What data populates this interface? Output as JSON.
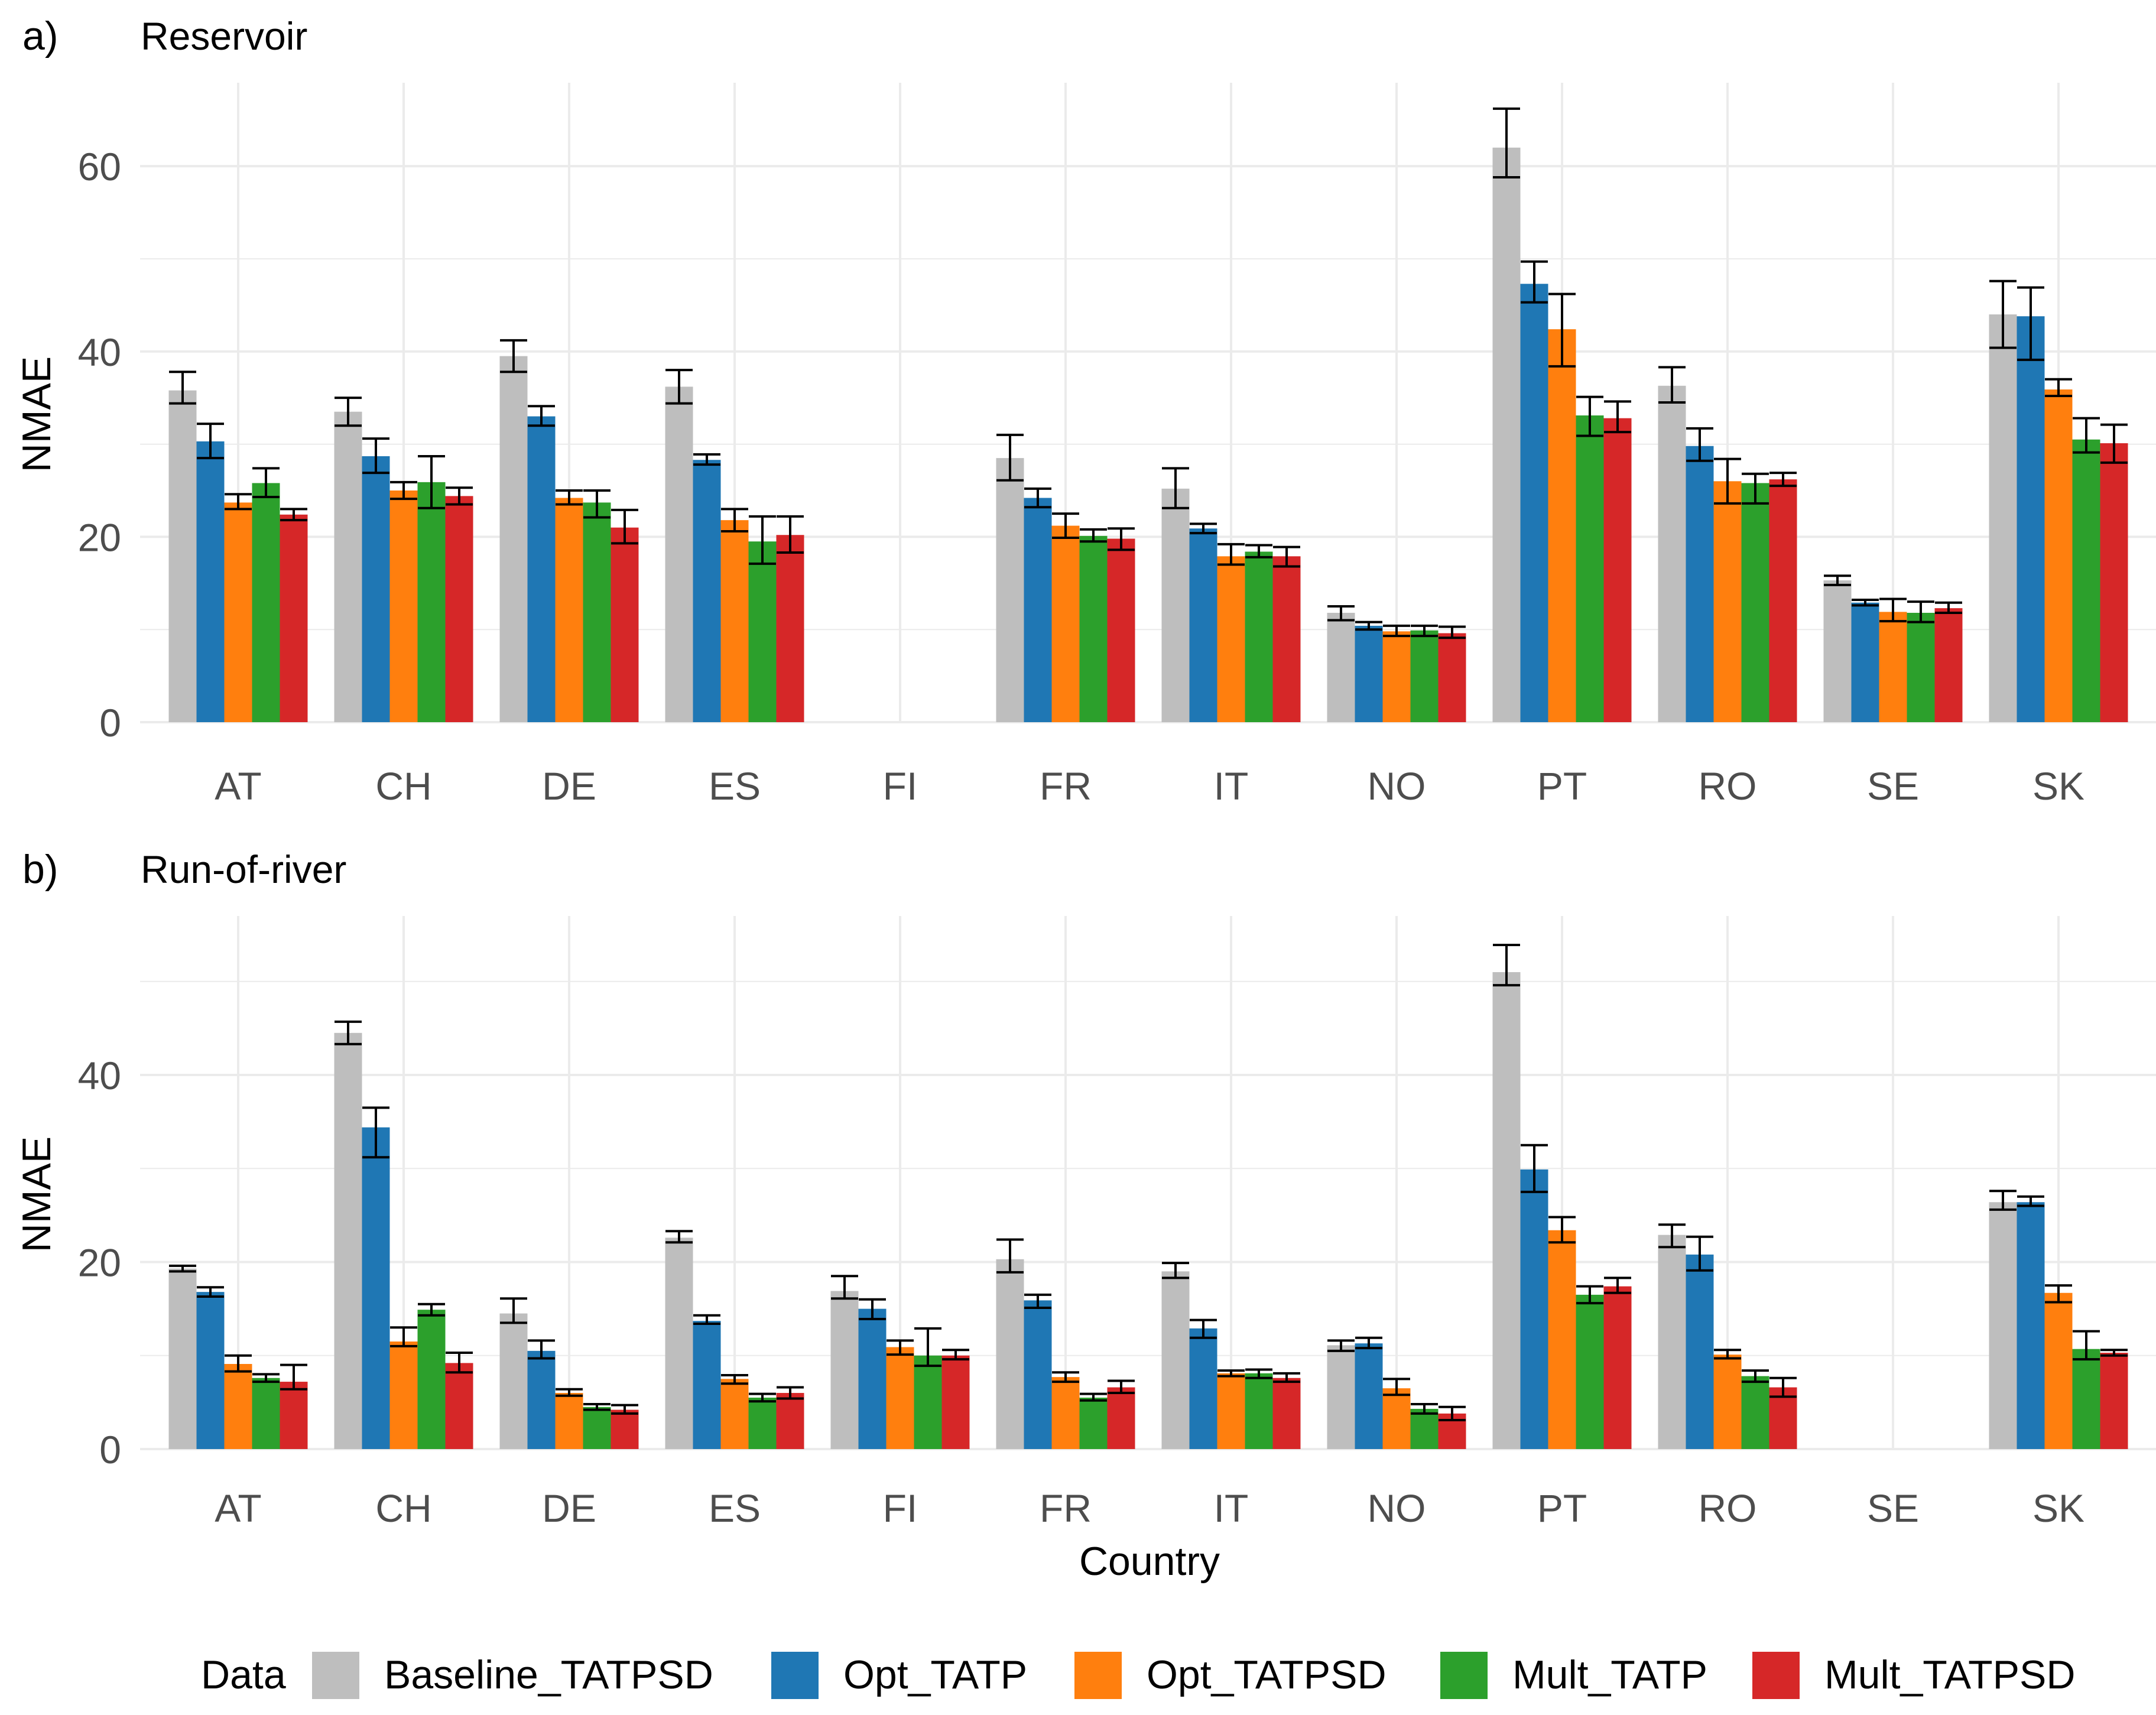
{
  "legend": {
    "title": "Data",
    "entries": [
      {
        "name": "Baseline_TATPSD",
        "color": "#bebebe"
      },
      {
        "name": "Opt_TATP",
        "color": "#1f77b4"
      },
      {
        "name": "Opt_TATPSD",
        "color": "#ff7f0e"
      },
      {
        "name": "Mult_TATP",
        "color": "#2ca02c"
      },
      {
        "name": "Mult_TATPSD",
        "color": "#d62728"
      }
    ]
  },
  "colors": {
    "grid": "#ebebeb",
    "axis_text": "#4d4d4d",
    "title_text": "#000000",
    "error_bar": "#000000"
  },
  "chart_data": [
    {
      "type": "bar",
      "panel_label": "a)",
      "title": "Reservoir",
      "xlabel": "",
      "ylabel": "NMAE",
      "ylim": [
        0,
        69
      ],
      "yticks": [
        0,
        20,
        40,
        60
      ],
      "grid": true,
      "categories": [
        "AT",
        "CH",
        "DE",
        "ES",
        "FI",
        "FR",
        "IT",
        "NO",
        "PT",
        "RO",
        "SE",
        "SK"
      ],
      "series": [
        {
          "name": "Baseline_TATPSD",
          "values": [
            35.8,
            33.5,
            39.5,
            36.2,
            null,
            28.5,
            25.2,
            11.8,
            62.0,
            36.3,
            15.3,
            44.0
          ],
          "err_low": [
            34.4,
            32.0,
            37.8,
            34.4,
            null,
            26.1,
            23.1,
            11.0,
            58.8,
            34.5,
            14.8,
            40.4
          ],
          "err_high": [
            37.8,
            35.0,
            41.2,
            38.0,
            null,
            31.0,
            27.4,
            12.5,
            66.2,
            38.3,
            15.8,
            47.6
          ]
        },
        {
          "name": "Opt_TATP",
          "values": [
            30.3,
            28.7,
            33.0,
            28.3,
            null,
            24.2,
            20.9,
            10.4,
            47.3,
            29.8,
            12.9,
            43.8
          ],
          "err_low": [
            28.5,
            26.9,
            32.0,
            27.8,
            null,
            23.2,
            20.4,
            10.0,
            45.3,
            28.2,
            12.6,
            39.1
          ],
          "err_high": [
            32.2,
            30.6,
            34.1,
            28.9,
            null,
            25.2,
            21.4,
            10.8,
            49.7,
            31.7,
            13.2,
            46.9
          ]
        },
        {
          "name": "Opt_TATPSD",
          "values": [
            23.7,
            25.0,
            24.2,
            21.8,
            null,
            21.2,
            17.9,
            9.8,
            42.4,
            26.0,
            11.9,
            35.9
          ],
          "err_low": [
            23.0,
            24.1,
            23.5,
            20.6,
            null,
            19.9,
            17.0,
            9.3,
            38.4,
            23.6,
            10.9,
            35.2
          ],
          "err_high": [
            24.6,
            25.9,
            25.0,
            23.0,
            null,
            22.5,
            19.2,
            10.4,
            46.2,
            28.4,
            13.3,
            37.0
          ]
        },
        {
          "name": "Mult_TATP",
          "values": [
            25.8,
            25.9,
            23.7,
            19.5,
            null,
            20.1,
            18.4,
            9.9,
            33.1,
            25.8,
            11.8,
            30.5
          ],
          "err_low": [
            24.3,
            23.1,
            22.1,
            17.1,
            null,
            19.5,
            17.8,
            9.3,
            30.9,
            23.6,
            10.8,
            29.1
          ],
          "err_high": [
            27.4,
            28.7,
            25.0,
            22.2,
            null,
            20.8,
            19.1,
            10.4,
            35.1,
            26.8,
            13.0,
            32.8
          ]
        },
        {
          "name": "Mult_TATPSD",
          "values": [
            22.4,
            24.4,
            21.0,
            20.2,
            null,
            19.8,
            17.9,
            9.6,
            32.8,
            26.2,
            12.3,
            30.1
          ],
          "err_low": [
            21.8,
            23.5,
            19.3,
            18.3,
            null,
            18.6,
            16.8,
            9.1,
            31.3,
            25.5,
            11.8,
            28.0
          ],
          "err_high": [
            23.0,
            25.3,
            22.9,
            22.2,
            null,
            20.9,
            18.9,
            10.3,
            34.6,
            26.9,
            12.9,
            32.1
          ]
        }
      ]
    },
    {
      "type": "bar",
      "panel_label": "b)",
      "title": "Run-of-river",
      "xlabel": "Country",
      "ylabel": "NMAE",
      "ylim": [
        0,
        57
      ],
      "yticks": [
        0,
        20,
        40
      ],
      "grid": true,
      "categories": [
        "AT",
        "CH",
        "DE",
        "ES",
        "FI",
        "FR",
        "IT",
        "NO",
        "PT",
        "RO",
        "SE",
        "SK"
      ],
      "series": [
        {
          "name": "Baseline_TATPSD",
          "values": [
            19.3,
            44.5,
            14.5,
            22.6,
            16.9,
            20.3,
            19.0,
            11.1,
            51.0,
            22.9,
            null,
            26.4
          ],
          "err_low": [
            19.0,
            43.3,
            13.5,
            22.1,
            16.1,
            18.9,
            18.3,
            10.5,
            49.6,
            21.6,
            null,
            25.6
          ],
          "err_high": [
            19.6,
            45.7,
            16.1,
            23.3,
            18.5,
            22.4,
            19.9,
            11.6,
            53.9,
            24.0,
            null,
            27.6
          ]
        },
        {
          "name": "Opt_TATP",
          "values": [
            16.8,
            34.4,
            10.5,
            13.7,
            15.0,
            15.9,
            12.9,
            11.3,
            29.9,
            20.8,
            null,
            26.4
          ],
          "err_low": [
            16.3,
            31.2,
            9.7,
            13.4,
            13.9,
            15.1,
            11.9,
            10.8,
            27.5,
            19.1,
            null,
            26.0
          ],
          "err_high": [
            17.3,
            36.5,
            11.6,
            14.3,
            16.0,
            16.5,
            13.8,
            11.9,
            32.5,
            22.7,
            null,
            27.0
          ]
        },
        {
          "name": "Opt_TATPSD",
          "values": [
            9.1,
            11.5,
            6.0,
            7.5,
            10.9,
            7.7,
            8.1,
            6.5,
            23.4,
            10.1,
            null,
            16.7
          ],
          "err_low": [
            8.3,
            11.0,
            5.7,
            7.0,
            10.1,
            7.2,
            7.8,
            5.8,
            22.1,
            9.7,
            null,
            15.7
          ],
          "err_high": [
            10.0,
            13.0,
            6.4,
            7.9,
            11.6,
            8.2,
            8.4,
            7.5,
            24.8,
            10.6,
            null,
            17.5
          ]
        },
        {
          "name": "Mult_TATP",
          "values": [
            7.6,
            14.9,
            4.5,
            5.5,
            10.0,
            5.5,
            8.1,
            4.3,
            16.5,
            7.8,
            null,
            10.7
          ],
          "err_low": [
            7.2,
            14.3,
            4.2,
            5.1,
            8.9,
            5.2,
            7.6,
            3.8,
            15.6,
            7.2,
            null,
            9.6
          ],
          "err_high": [
            8.0,
            15.5,
            4.8,
            5.9,
            12.9,
            5.9,
            8.5,
            4.8,
            17.4,
            8.4,
            null,
            12.6
          ]
        },
        {
          "name": "Mult_TATPSD",
          "values": [
            7.2,
            9.2,
            4.2,
            6.0,
            10.0,
            6.6,
            7.6,
            3.8,
            17.4,
            6.6,
            null,
            10.3
          ],
          "err_low": [
            6.4,
            8.2,
            3.8,
            5.4,
            9.6,
            6.0,
            7.2,
            3.1,
            16.7,
            5.6,
            null,
            10.0
          ],
          "err_high": [
            9.0,
            10.3,
            4.7,
            6.6,
            10.6,
            7.3,
            8.1,
            4.5,
            18.3,
            7.6,
            null,
            10.6
          ]
        }
      ]
    }
  ]
}
